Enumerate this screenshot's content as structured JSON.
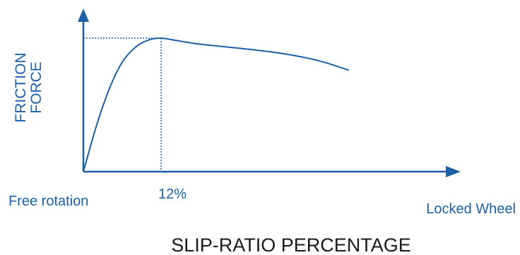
{
  "chart_data": {
    "type": "line",
    "title": "",
    "xlabel": "SLIP-RATIO PERCENTAGE",
    "ylabel_lines": [
      "FRICTION",
      "FORCE"
    ],
    "x_start_label": "Free rotation",
    "x_end_label": "Locked Wheel",
    "peak_label": "12%",
    "ticks": false,
    "grid": false,
    "legend": "none",
    "series": [
      {
        "points": [
          [
            0,
            0.0
          ],
          [
            2,
            0.34
          ],
          [
            4,
            0.62
          ],
          [
            6,
            0.82
          ],
          [
            8,
            0.93
          ],
          [
            10,
            0.985
          ],
          [
            12,
            1.0
          ],
          [
            14,
            0.985
          ],
          [
            18,
            0.955
          ],
          [
            24,
            0.925
          ],
          [
            30,
            0.89
          ],
          [
            36,
            0.835
          ],
          [
            41,
            0.76
          ]
        ]
      }
    ],
    "peak": {
      "x": 12,
      "y": 1.0
    },
    "colors": {
      "axis": "#1f5fa8",
      "curve": "#1f5fa8",
      "label_text": "#1f5fa8",
      "axis_title_text": "#1a1a1a",
      "guide": "#1f5fa8"
    }
  }
}
